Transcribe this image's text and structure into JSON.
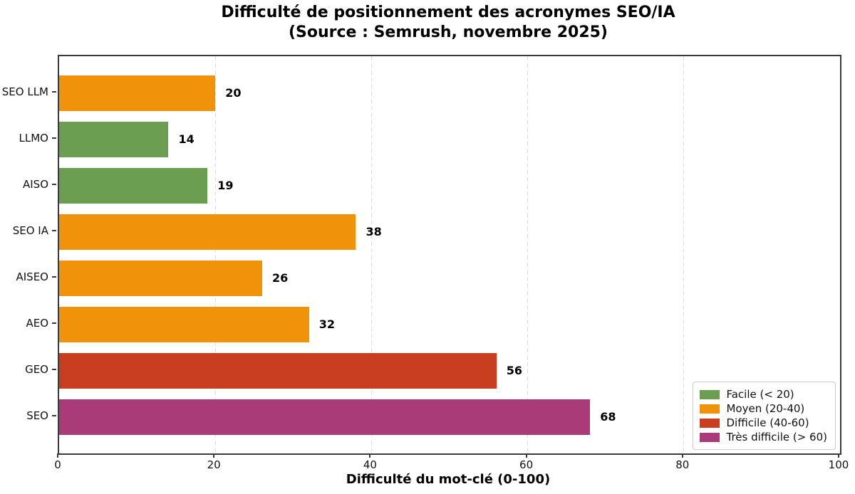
{
  "title": {
    "line1": "Difficulté de positionnement des acronymes SEO/IA",
    "line2": "(Source : Semrush, novembre 2025)"
  },
  "chart_data": {
    "type": "bar",
    "orientation": "horizontal",
    "title": "Difficulté de positionnement des acronymes SEO/IA (Source : Semrush, novembre 2025)",
    "categories": [
      "SEO LLM",
      "LLMO",
      "AISO",
      "SEO IA",
      "AISEO",
      "AEO",
      "GEO",
      "SEO"
    ],
    "values": [
      20,
      14,
      19,
      38,
      26,
      32,
      56,
      68
    ],
    "bar_colors": [
      "#F0930B",
      "#6B9E51",
      "#6B9E51",
      "#F0930B",
      "#F0930B",
      "#F0930B",
      "#C93E21",
      "#A93B79"
    ],
    "xlabel": "Difficulté du mot-clé (0-100)",
    "ylabel": "",
    "xlim": [
      0,
      100
    ],
    "x_ticks": [
      0,
      20,
      40,
      60,
      80,
      100
    ],
    "grid": "vertical-dashed",
    "value_labels_shown": true,
    "legend": {
      "position": "lower-right",
      "entries": [
        {
          "label": "Facile (< 20)",
          "color": "#6B9E51"
        },
        {
          "label": "Moyen (20-40)",
          "color": "#F0930B"
        },
        {
          "label": "Difficile (40-60)",
          "color": "#C93E21"
        },
        {
          "label": "Très difficile (> 60)",
          "color": "#A93B79"
        }
      ]
    },
    "colors": {
      "spine": "#3a3a3a",
      "grid": "#dcdcdc",
      "text": "#000000"
    }
  }
}
